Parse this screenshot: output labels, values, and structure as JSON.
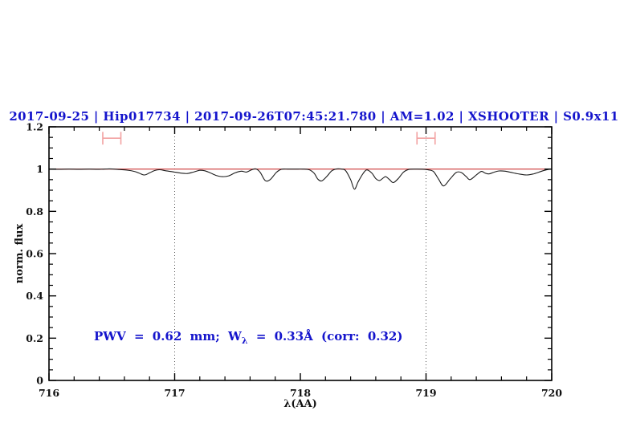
{
  "colors": {
    "accent_blue": "#1414cc",
    "spectrum": "#1a1a1a",
    "continuum_red": "#cc3333",
    "marker_pink": "#f2a2a2",
    "vline": "#555555",
    "frame": "#000000",
    "background": "#ffffff"
  },
  "chart_data": {
    "type": "line",
    "title": "2017-09-25 | Hip017734 | 2017-09-26T07:45:21.780 | AM=1.02 | XSHOOTER | S0.9x11",
    "xlabel": "λ(AA)",
    "ylabel": "norm. flux",
    "xlim": [
      716,
      720
    ],
    "ylim": [
      0,
      1.2
    ],
    "x_major_ticks": [
      716,
      717,
      718,
      719,
      720
    ],
    "x_tick_labels": [
      "716",
      "717",
      "718",
      "719",
      "720"
    ],
    "x_minor_step": 0.2,
    "y_major_ticks": [
      0,
      0.2,
      0.4,
      0.6,
      0.8,
      1,
      1.2
    ],
    "y_tick_labels": [
      "0",
      "0.2",
      "0.4",
      "0.6",
      "0.8",
      "1",
      "1.2"
    ],
    "y_minor_step": 0.05,
    "grid": "off",
    "legend": "none",
    "vlines": [
      717,
      719
    ],
    "continuum_level": 1.0,
    "range_markers": [
      {
        "x_center": 716.5,
        "x_half_width": 0.072,
        "y": 1.146,
        "cap_half_height": 0.03
      },
      {
        "x_center": 719.0,
        "x_half_width": 0.072,
        "y": 1.146,
        "cap_half_height": 0.03
      }
    ],
    "annotation": {
      "prefix": "PWV = 0.62 mm; W",
      "sub": "λ",
      "suffix": " = 0.33Å (corr: 0.32)",
      "pwv_mm": 0.62,
      "w_lambda_angstrom": 0.33,
      "corr": 0.32
    },
    "series": [
      {
        "name": "observed-spectrum",
        "points": [
          [
            716.0,
            1.0
          ],
          [
            716.08,
            0.999
          ],
          [
            716.16,
            1.0
          ],
          [
            716.24,
            0.999
          ],
          [
            716.32,
            1.0
          ],
          [
            716.4,
            0.999
          ],
          [
            716.48,
            1.001
          ],
          [
            716.56,
            0.998
          ],
          [
            716.62,
            0.995
          ],
          [
            716.68,
            0.989
          ],
          [
            716.72,
            0.98
          ],
          [
            716.76,
            0.972
          ],
          [
            716.8,
            0.982
          ],
          [
            716.84,
            0.993
          ],
          [
            716.88,
            0.997
          ],
          [
            716.93,
            0.992
          ],
          [
            717.0,
            0.986
          ],
          [
            717.05,
            0.981
          ],
          [
            717.1,
            0.979
          ],
          [
            717.15,
            0.986
          ],
          [
            717.2,
            0.994
          ],
          [
            717.24,
            0.992
          ],
          [
            717.28,
            0.983
          ],
          [
            717.33,
            0.97
          ],
          [
            717.38,
            0.964
          ],
          [
            717.43,
            0.968
          ],
          [
            717.48,
            0.982
          ],
          [
            717.53,
            0.99
          ],
          [
            717.57,
            0.986
          ],
          [
            717.61,
            0.996
          ],
          [
            717.645,
            1.001
          ],
          [
            717.68,
            0.985
          ],
          [
            717.72,
            0.946
          ],
          [
            717.76,
            0.95
          ],
          [
            717.81,
            0.985
          ],
          [
            717.85,
            0.999
          ],
          [
            717.9,
            1.0
          ],
          [
            717.96,
            1.0
          ],
          [
            718.02,
            1.0
          ],
          [
            718.07,
            0.997
          ],
          [
            718.11,
            0.98
          ],
          [
            718.14,
            0.952
          ],
          [
            718.17,
            0.944
          ],
          [
            718.21,
            0.965
          ],
          [
            718.25,
            0.992
          ],
          [
            718.29,
            1.001
          ],
          [
            718.33,
            1.0
          ],
          [
            718.36,
            0.993
          ],
          [
            718.4,
            0.95
          ],
          [
            718.43,
            0.905
          ],
          [
            718.46,
            0.94
          ],
          [
            718.5,
            0.98
          ],
          [
            718.53,
            0.996
          ],
          [
            718.57,
            0.98
          ],
          [
            718.6,
            0.955
          ],
          [
            718.63,
            0.946
          ],
          [
            718.66,
            0.958
          ],
          [
            718.68,
            0.964
          ],
          [
            718.71,
            0.95
          ],
          [
            718.74,
            0.936
          ],
          [
            718.78,
            0.956
          ],
          [
            718.82,
            0.985
          ],
          [
            718.86,
            0.998
          ],
          [
            718.92,
            1.0
          ],
          [
            718.98,
            0.999
          ],
          [
            719.02,
            0.996
          ],
          [
            719.06,
            0.988
          ],
          [
            719.1,
            0.952
          ],
          [
            719.14,
            0.92
          ],
          [
            719.19,
            0.952
          ],
          [
            719.24,
            0.984
          ],
          [
            719.28,
            0.984
          ],
          [
            719.32,
            0.964
          ],
          [
            719.35,
            0.95
          ],
          [
            719.4,
            0.972
          ],
          [
            719.44,
            0.989
          ],
          [
            719.47,
            0.981
          ],
          [
            719.5,
            0.977
          ],
          [
            719.54,
            0.985
          ],
          [
            719.58,
            0.991
          ],
          [
            719.63,
            0.99
          ],
          [
            719.67,
            0.985
          ],
          [
            719.73,
            0.978
          ],
          [
            719.8,
            0.972
          ],
          [
            719.86,
            0.978
          ],
          [
            719.92,
            0.99
          ],
          [
            719.97,
            0.998
          ],
          [
            720.0,
            1.0
          ]
        ]
      },
      {
        "name": "continuum-fit",
        "points": [
          [
            716.0,
            1.0
          ],
          [
            720.0,
            1.0
          ]
        ]
      }
    ]
  }
}
